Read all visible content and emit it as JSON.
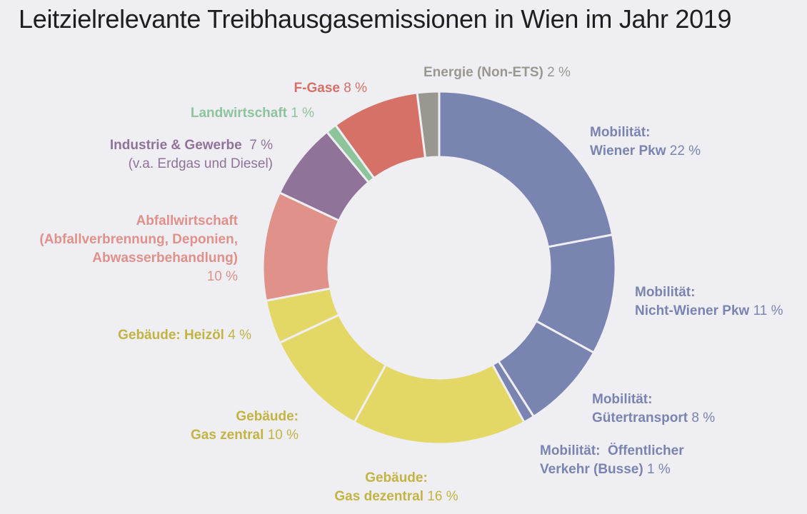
{
  "title": "Leitzielrelevante Treibhausgasemissionen in Wien im Jahr 2019",
  "colors": {
    "mobility": "#7a84b0",
    "buildings": "#e3d766",
    "waste": "#df918a",
    "industry": "#8f7399",
    "agriculture": "#8ec49a",
    "fgas": "#d67168",
    "energy": "#999890"
  },
  "chart_data": {
    "type": "pie",
    "variant": "donut",
    "title": "Leitzielrelevante Treibhausgasemissionen in Wien im Jahr 2019",
    "unit": "%",
    "slices": [
      {
        "label": "Mobilität: Wiener Pkw",
        "value": 22,
        "color": "#7a84b0"
      },
      {
        "label": "Mobilität: Nicht-Wiener Pkw",
        "value": 11,
        "color": "#7a84b0"
      },
      {
        "label": "Mobilität: Gütertransport",
        "value": 8,
        "color": "#7a84b0"
      },
      {
        "label": "Mobilität: Öffentlicher Verkehr (Busse)",
        "value": 1,
        "color": "#7a84b0"
      },
      {
        "label": "Gebäude: Gas dezentral",
        "value": 16,
        "color": "#e3d766"
      },
      {
        "label": "Gebäude: Gas zentral",
        "value": 10,
        "color": "#e3d766"
      },
      {
        "label": "Gebäude: Heizöl",
        "value": 4,
        "color": "#e3d766"
      },
      {
        "label": "Abfallwirtschaft (Abfallverbrennung, Deponien, Abwasserbehandlung)",
        "value": 10,
        "color": "#df918a"
      },
      {
        "label": "Industrie & Gewerbe (v.a. Erdgas und Diesel)",
        "value": 7,
        "color": "#8f7399"
      },
      {
        "label": "Landwirtschaft",
        "value": 1,
        "color": "#8ec49a"
      },
      {
        "label": "F-Gase",
        "value": 8,
        "color": "#d67168"
      },
      {
        "label": "Energie (Non-ETS)",
        "value": 2,
        "color": "#999890"
      }
    ]
  },
  "labels": {
    "wiener_pkw": {
      "l1": "Mobilität:",
      "l2": "Wiener Pkw",
      "pct": "22 %"
    },
    "nicht_wiener_pkw": {
      "l1": "Mobilität:",
      "l2": "Nicht-Wiener Pkw",
      "pct": "11 %"
    },
    "guetertransport": {
      "l1": "Mobilität:",
      "l2": "Gütertransport",
      "pct": "8 %"
    },
    "oeffentlich": {
      "l1": "Mobilität:  Öffentlicher",
      "l2": "Verkehr (Busse)",
      "pct": "1 %"
    },
    "gas_dezentral": {
      "l1": "Gebäude:",
      "l2": "Gas dezentral",
      "pct": "16 %"
    },
    "gas_zentral": {
      "l1": "Gebäude:",
      "l2": "Gas zentral",
      "pct": "10 %"
    },
    "heizoel": {
      "name": "Gebäude: Heizöl",
      "pct": "4 %"
    },
    "abfall": {
      "l1": "Abfallwirtschaft",
      "l2": "(Abfallverbrennung, Deponien,",
      "l3": "Abwasserbehandlung)",
      "pct": "10 %"
    },
    "industrie": {
      "name": "Industrie & Gewerbe",
      "pct": "7 %",
      "sub": "(v.a. Erdgas und Diesel)"
    },
    "landwirtschaft": {
      "name": "Landwirtschaft",
      "pct": "1 %"
    },
    "fgase": {
      "name": "F-Gase",
      "pct": "8 %"
    },
    "energie": {
      "name": "Energie (Non-ETS)",
      "pct": "2 %"
    }
  }
}
